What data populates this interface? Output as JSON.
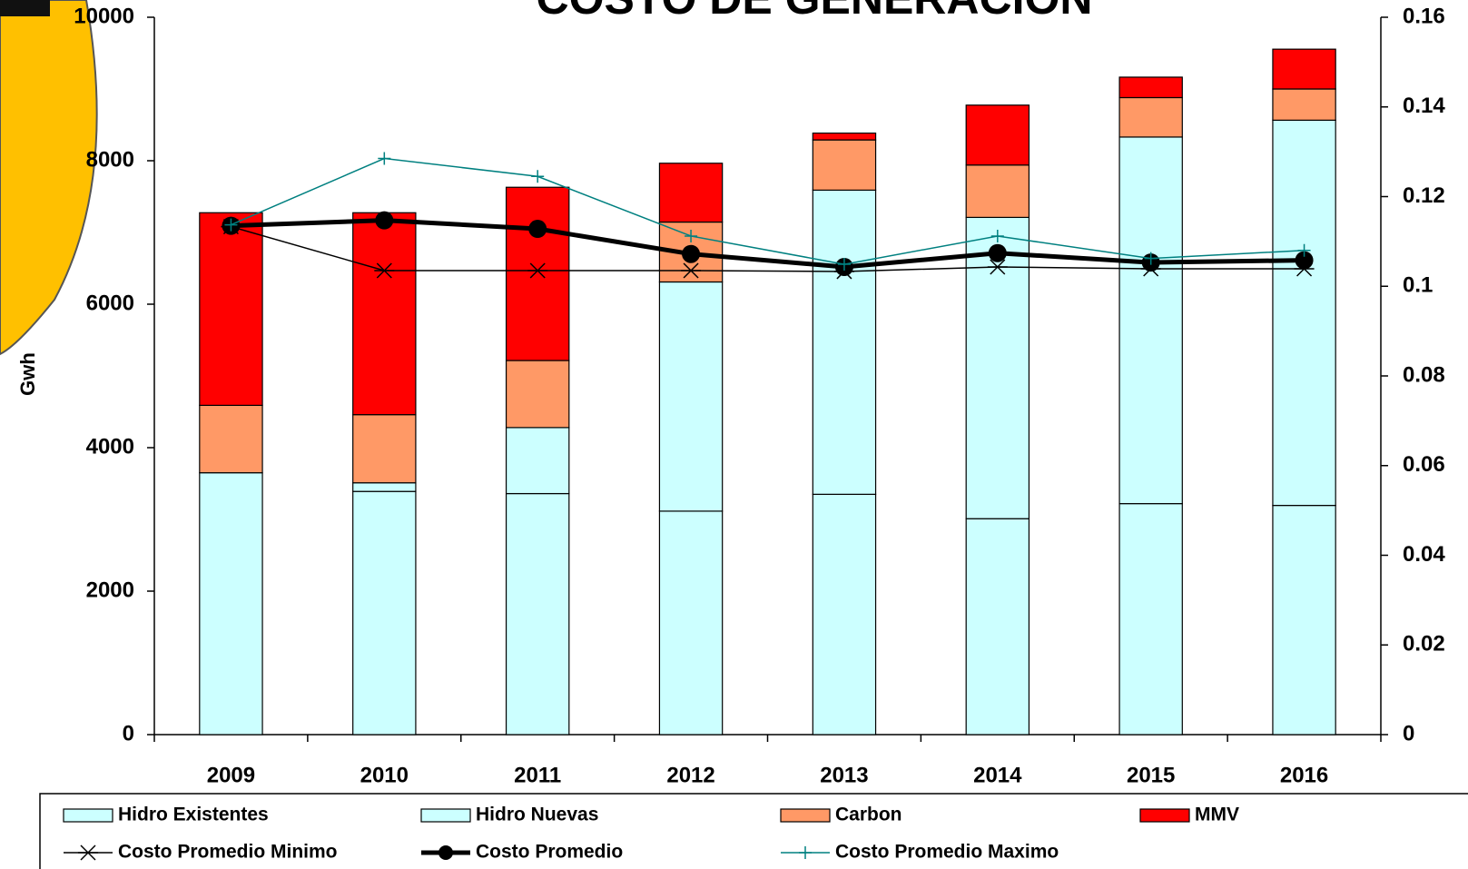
{
  "chart_data": {
    "type": "bar",
    "title": "COSTO DE GENERACION",
    "y_label": "Gwh",
    "categories": [
      "2009",
      "2010",
      "2011",
      "2012",
      "2013",
      "2014",
      "2015",
      "2016"
    ],
    "ylim": [
      0,
      10000
    ],
    "yticks": [
      0,
      2000,
      4000,
      6000,
      8000,
      10000
    ],
    "y2lim": [
      0,
      0.16
    ],
    "y2ticks": [
      0,
      0.02,
      0.04,
      0.06,
      0.08,
      0.1,
      0.12,
      0.14,
      0.16
    ],
    "stacked": true,
    "series": [
      {
        "name": "Hidro Existentes",
        "type": "bar",
        "color": "#ccffff",
        "values": [
          3650,
          3390,
          3360,
          3115,
          3350,
          3010,
          3220,
          3195
        ]
      },
      {
        "name": "Hidro Nuevas",
        "type": "bar",
        "color": "#ccffff",
        "values": [
          0,
          120,
          920,
          3195,
          4240,
          4200,
          5110,
          5370
        ]
      },
      {
        "name": "Carbon",
        "type": "bar",
        "color": "#ff9966",
        "values": [
          940,
          950,
          935,
          835,
          700,
          730,
          550,
          435
        ]
      },
      {
        "name": "MMV",
        "type": "bar",
        "color": "#ff0000",
        "values": [
          2685,
          2815,
          2415,
          820,
          95,
          835,
          285,
          555
        ]
      },
      {
        "name": "Costo Promedio Minimo",
        "type": "line",
        "axis": "y2",
        "marker": "star",
        "color": "#000000",
        "values": [
          0.1133,
          0.1035,
          0.1035,
          0.1035,
          0.1033,
          0.1043,
          0.1039,
          0.1039
        ]
      },
      {
        "name": "Costo Promedio",
        "type": "line",
        "axis": "y2",
        "marker": "circle",
        "color": "#000000",
        "values": [
          0.1135,
          0.1147,
          0.1128,
          0.1072,
          0.1043,
          0.1074,
          0.1053,
          0.1058
        ]
      },
      {
        "name": "Costo Promedio Maximo",
        "type": "line",
        "axis": "y2",
        "marker": "plus",
        "color": "#008080",
        "values": [
          0.1137,
          0.1285,
          0.1245,
          0.1112,
          0.1049,
          0.1112,
          0.1062,
          0.108
        ]
      }
    ]
  }
}
